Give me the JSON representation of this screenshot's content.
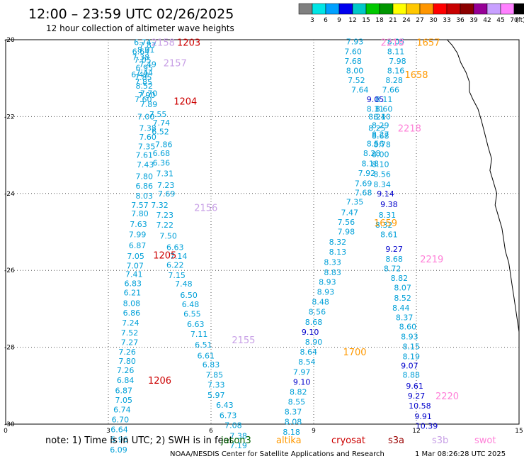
{
  "header": {
    "title": "12:00 – 23:59 UTC 02/26/2025",
    "subtitle": "12 hour collection of altimeter wave heights"
  },
  "colorbar": {
    "unit": "(ft)",
    "labels": [
      "3",
      "6",
      "9",
      "12",
      "15",
      "18",
      "21",
      "24",
      "27",
      "30",
      "33",
      "36",
      "39",
      "42",
      "45",
      "70"
    ],
    "colors": [
      "#808080",
      "#00e5e5",
      "#00a0ff",
      "#0000ee",
      "#00c8c8",
      "#00c800",
      "#009600",
      "#ffff00",
      "#ffc800",
      "#ff9600",
      "#ff0000",
      "#c80000",
      "#8b0000",
      "#960096",
      "#c8a0ff",
      "#ff80ff",
      "#000000"
    ]
  },
  "footer": {
    "note": "note:  1) Time is in UTC;  2) SWH is in feet",
    "credit": "NOAA/NESDIS Center for Satellite Applications and Research",
    "timestamp": "1 Mar 08:26:28 UTC 2025",
    "missions": [
      {
        "name": "jason3",
        "color": "#006400"
      },
      {
        "name": "altika",
        "color": "#ff9900"
      },
      {
        "name": "cryosat",
        "color": "#cc0000"
      },
      {
        "name": "s3a",
        "color": "#990000"
      },
      {
        "name": "s3b",
        "color": "#c8a0e6"
      },
      {
        "name": "swot",
        "color": "#ff80d8"
      }
    ]
  },
  "chart_data": {
    "type": "scatter",
    "xlim": [
      0,
      15
    ],
    "ylim": [
      -30,
      -20
    ],
    "x_ticks": [
      "0",
      "3",
      "6",
      "9",
      "12",
      "15"
    ],
    "y_ticks": [
      "-20",
      "-22",
      "-24",
      "-26",
      "-28",
      "-30"
    ],
    "grid": true,
    "legend": "colorbar-top-right",
    "tracks": [
      {
        "color": "#00a0d8",
        "points": [
          [
            4.0,
            -20.06,
            "6.74"
          ],
          [
            4.15,
            -20.14,
            "7.87"
          ],
          [
            4.1,
            -20.26,
            "8.01"
          ],
          [
            3.95,
            -20.3,
            "6.64"
          ],
          [
            3.95,
            -20.45,
            "7.38"
          ],
          [
            4.0,
            -20.53,
            "7.05"
          ],
          [
            4.15,
            -20.64,
            "7.49"
          ],
          [
            4.05,
            -20.73,
            "6.95"
          ],
          [
            3.92,
            -20.9,
            "6.42"
          ],
          [
            4.05,
            -20.86,
            "7.44"
          ],
          [
            4.02,
            -20.98,
            "7.85"
          ],
          [
            4.03,
            -21.1,
            "7.85"
          ],
          [
            4.05,
            -21.2,
            "8.52"
          ],
          [
            4.18,
            -21.39,
            "7.70"
          ],
          [
            4.02,
            -21.55,
            "7.60"
          ],
          [
            4.12,
            -21.44,
            "7.90"
          ],
          [
            4.18,
            -21.68,
            "7.89"
          ],
          [
            4.45,
            -21.94,
            "7.55"
          ],
          [
            4.1,
            -22.0,
            "7.00"
          ],
          [
            4.55,
            -22.16,
            "7.74"
          ],
          [
            4.15,
            -22.3,
            "7.38"
          ],
          [
            4.52,
            -22.39,
            "6.52"
          ],
          [
            4.15,
            -22.53,
            "7.60"
          ],
          [
            4.62,
            -22.72,
            "7.86"
          ],
          [
            4.12,
            -22.78,
            "7.35"
          ],
          [
            4.55,
            -22.95,
            "6.68"
          ],
          [
            4.05,
            -23.0,
            "7.61"
          ],
          [
            4.55,
            -23.2,
            "6.36"
          ],
          [
            4.08,
            -23.25,
            "7.43"
          ],
          [
            4.65,
            -23.48,
            "7.31"
          ],
          [
            4.05,
            -23.55,
            "7.80"
          ],
          [
            4.68,
            -23.78,
            "7.23"
          ],
          [
            4.05,
            -23.8,
            "6.86"
          ],
          [
            4.7,
            -24.0,
            "7.69"
          ],
          [
            4.05,
            -24.06,
            "8.03"
          ],
          [
            4.5,
            -24.3,
            "7.32"
          ],
          [
            3.92,
            -24.3,
            "7.57"
          ],
          [
            3.92,
            -24.52,
            "7.80"
          ],
          [
            4.65,
            -24.56,
            "7.23"
          ],
          [
            3.88,
            -24.8,
            "7.63"
          ],
          [
            4.65,
            -24.82,
            "7.22"
          ],
          [
            3.85,
            -25.06,
            "7.99"
          ],
          [
            4.75,
            -25.1,
            "7.50"
          ],
          [
            3.85,
            -25.35,
            "6.87"
          ],
          [
            4.95,
            -25.4,
            "6.63"
          ],
          [
            3.8,
            -25.63,
            "7.05"
          ],
          [
            5.05,
            -25.63,
            "7.14"
          ],
          [
            3.78,
            -25.88,
            "7.07"
          ],
          [
            4.95,
            -25.86,
            "6.22"
          ],
          [
            3.75,
            -26.1,
            "7.41"
          ],
          [
            5.0,
            -26.13,
            "7.15"
          ],
          [
            3.72,
            -26.34,
            "6.83"
          ],
          [
            5.2,
            -26.35,
            "7.48"
          ],
          [
            3.7,
            -26.58,
            "6.21"
          ],
          [
            5.35,
            -26.64,
            "6.50"
          ],
          [
            3.68,
            -26.85,
            "8.08"
          ],
          [
            5.4,
            -26.88,
            "6.48"
          ],
          [
            3.68,
            -27.1,
            "6.86"
          ],
          [
            5.45,
            -27.13,
            "6.55"
          ],
          [
            3.65,
            -27.36,
            "7.24"
          ],
          [
            5.55,
            -27.4,
            "6.63"
          ],
          [
            3.62,
            -27.62,
            "7.52"
          ],
          [
            5.65,
            -27.66,
            "7.11"
          ],
          [
            3.62,
            -27.87,
            "7.27"
          ],
          [
            5.78,
            -27.93,
            "6.51"
          ],
          [
            3.55,
            -28.12,
            "7.26"
          ],
          [
            5.85,
            -28.22,
            "6.61"
          ],
          [
            3.55,
            -28.36,
            "7.80"
          ],
          [
            6.0,
            -28.45,
            "6.83"
          ],
          [
            3.5,
            -28.6,
            "7.26"
          ],
          [
            6.1,
            -28.72,
            "7.85"
          ],
          [
            3.5,
            -28.86,
            "6.84"
          ],
          [
            6.15,
            -28.98,
            "7.33"
          ],
          [
            3.45,
            -29.12,
            "6.87"
          ],
          [
            6.15,
            -29.24,
            "5.97"
          ],
          [
            3.45,
            -29.37,
            "7.05"
          ],
          [
            6.4,
            -29.5,
            "6.43"
          ],
          [
            3.4,
            -29.62,
            "6.74"
          ],
          [
            6.5,
            -29.77,
            "6.73"
          ],
          [
            3.35,
            -29.88,
            "6.70"
          ],
          [
            6.65,
            -30.03,
            "7.08"
          ],
          [
            3.32,
            -30.14,
            "6.64"
          ],
          [
            6.8,
            -30.3,
            "7.38"
          ],
          [
            3.32,
            -30.4,
            "5.96"
          ],
          [
            6.8,
            -30.55,
            "7.19"
          ],
          [
            3.3,
            -30.66,
            "6.09"
          ]
        ]
      },
      {
        "color": "#00a0d8",
        "points": [
          [
            10.2,
            -20.05,
            "7.93"
          ],
          [
            11.4,
            -20.05,
            "8.05"
          ],
          [
            10.15,
            -20.3,
            "7.60"
          ],
          [
            11.4,
            -20.3,
            "8.11"
          ],
          [
            10.15,
            -20.55,
            "7.68"
          ],
          [
            11.45,
            -20.55,
            "7.98"
          ],
          [
            10.2,
            -20.8,
            "8.00"
          ],
          [
            11.4,
            -20.8,
            "8.16"
          ],
          [
            10.25,
            -21.05,
            "7.52"
          ],
          [
            11.35,
            -21.05,
            "8.28"
          ],
          [
            10.35,
            -21.3,
            "7.64"
          ],
          [
            11.25,
            -21.3,
            "7.66"
          ],
          [
            11.05,
            -21.55,
            "8.11"
          ],
          [
            10.8,
            -21.8,
            "8.31"
          ],
          [
            11.05,
            -21.8,
            "8.60"
          ],
          [
            10.85,
            -22.0,
            "8.24"
          ],
          [
            11.0,
            -22.0,
            "8.10"
          ],
          [
            10.95,
            -22.22,
            "8.29"
          ],
          [
            10.85,
            -22.3,
            "8.25"
          ],
          [
            10.95,
            -22.46,
            "8.27"
          ],
          [
            10.95,
            -22.5,
            "8.68"
          ],
          [
            10.8,
            -22.7,
            "8.56"
          ],
          [
            11.0,
            -22.72,
            "8.78"
          ],
          [
            10.7,
            -22.95,
            "8.28"
          ],
          [
            10.95,
            -22.98,
            "8.00"
          ],
          [
            10.65,
            -23.22,
            "8.18"
          ],
          [
            10.95,
            -23.24,
            "8.10"
          ],
          [
            10.55,
            -23.47,
            "7.92"
          ],
          [
            11.0,
            -23.5,
            "8.56"
          ],
          [
            10.45,
            -23.74,
            "7.69"
          ],
          [
            11.0,
            -23.76,
            "8.34"
          ],
          [
            10.45,
            -23.98,
            "7.68"
          ],
          [
            10.2,
            -24.22,
            "7.35"
          ],
          [
            10.05,
            -24.49,
            "7.47"
          ],
          [
            11.15,
            -24.56,
            "8.31"
          ],
          [
            9.95,
            -24.74,
            "7.56"
          ],
          [
            11.05,
            -24.82,
            "8.32"
          ],
          [
            9.95,
            -24.99,
            "7.98"
          ],
          [
            11.2,
            -25.06,
            "8.61"
          ],
          [
            9.7,
            -25.26,
            "8.32"
          ],
          [
            9.7,
            -25.52,
            "8.13"
          ],
          [
            11.35,
            -25.7,
            "8.68"
          ],
          [
            9.55,
            -25.78,
            "8.33"
          ],
          [
            11.3,
            -25.95,
            "8.72"
          ],
          [
            9.55,
            -26.05,
            "8.83"
          ],
          [
            11.5,
            -26.2,
            "8.82"
          ],
          [
            9.4,
            -26.3,
            "8.93"
          ],
          [
            11.6,
            -26.45,
            "8.07"
          ],
          [
            9.35,
            -26.56,
            "8.93"
          ],
          [
            11.6,
            -26.72,
            "8.52"
          ],
          [
            9.2,
            -26.82,
            "8.48"
          ],
          [
            11.55,
            -26.97,
            "8.44"
          ],
          [
            9.1,
            -27.08,
            "8.56"
          ],
          [
            11.65,
            -27.22,
            "8.37"
          ],
          [
            9.0,
            -27.34,
            "8.68"
          ],
          [
            11.75,
            -27.46,
            "8.60"
          ],
          [
            11.8,
            -27.72,
            "8.93"
          ],
          [
            9.0,
            -27.86,
            "8.90"
          ],
          [
            11.85,
            -27.98,
            "8.15"
          ],
          [
            8.85,
            -28.12,
            "8.64"
          ],
          [
            11.85,
            -28.24,
            "8.19"
          ],
          [
            8.8,
            -28.38,
            "8.54"
          ],
          [
            8.65,
            -28.64,
            "7.97"
          ],
          [
            11.85,
            -28.72,
            "8.88"
          ],
          [
            8.55,
            -29.16,
            "8.82"
          ],
          [
            8.5,
            -29.42,
            "8.55"
          ],
          [
            8.4,
            -29.68,
            "8.37"
          ],
          [
            8.4,
            -29.94,
            "8.08"
          ],
          [
            8.35,
            -30.2,
            "8.18"
          ]
        ]
      },
      {
        "color": "#0000cc",
        "points": [
          [
            10.8,
            -21.55,
            "9.05"
          ],
          [
            11.1,
            -24.0,
            "9.14"
          ],
          [
            11.2,
            -24.28,
            "9.38"
          ],
          [
            11.35,
            -25.44,
            "9.27"
          ],
          [
            8.9,
            -27.6,
            "9.10"
          ],
          [
            11.8,
            -28.48,
            "9.07"
          ],
          [
            8.65,
            -28.9,
            "9.10"
          ],
          [
            11.95,
            -29.0,
            "9.61"
          ],
          [
            12.0,
            -29.26,
            "9.27"
          ],
          [
            12.1,
            -29.52,
            "10.58"
          ],
          [
            12.2,
            -29.8,
            "9.91"
          ],
          [
            12.3,
            -30.05,
            "10.39"
          ]
        ]
      }
    ],
    "pass_labels": [
      {
        "x": 4.6,
        "y": -20.06,
        "text": "2158",
        "color": "#c8a0e6"
      },
      {
        "x": 5.35,
        "y": -20.06,
        "text": "1203",
        "color": "#cc0000"
      },
      {
        "x": 4.95,
        "y": -20.6,
        "text": "2157",
        "color": "#c8a0e6"
      },
      {
        "x": 5.25,
        "y": -21.6,
        "text": "1204",
        "color": "#cc0000"
      },
      {
        "x": 5.85,
        "y": -24.36,
        "text": "2156",
        "color": "#c8a0e6"
      },
      {
        "x": 4.65,
        "y": -25.6,
        "text": "1205",
        "color": "#cc0000"
      },
      {
        "x": 6.95,
        "y": -27.8,
        "text": "2155",
        "color": "#c8a0e6"
      },
      {
        "x": 4.5,
        "y": -28.86,
        "text": "1206",
        "color": "#cc0000"
      },
      {
        "x": 11.3,
        "y": -20.06,
        "text": "2218",
        "color": "#ff80d8"
      },
      {
        "x": 12.35,
        "y": -20.06,
        "text": "1657",
        "color": "#ff9900"
      },
      {
        "x": 12.0,
        "y": -20.9,
        "text": "1658",
        "color": "#ff9900"
      },
      {
        "x": 11.8,
        "y": -22.3,
        "text": "2218",
        "color": "#ff80d8"
      },
      {
        "x": 11.1,
        "y": -24.76,
        "text": "1659",
        "color": "#ff9900"
      },
      {
        "x": 12.45,
        "y": -25.7,
        "text": "2219",
        "color": "#ff80d8"
      },
      {
        "x": 10.2,
        "y": -28.12,
        "text": "1700",
        "color": "#ff9900"
      },
      {
        "x": 12.9,
        "y": -29.26,
        "text": "2220",
        "color": "#ff80d8"
      }
    ],
    "coastline": [
      [
        12.9,
        -20.0
      ],
      [
        13.05,
        -20.15
      ],
      [
        13.2,
        -20.35
      ],
      [
        13.3,
        -20.6
      ],
      [
        13.45,
        -20.85
      ],
      [
        13.55,
        -21.1
      ],
      [
        13.55,
        -21.35
      ],
      [
        13.65,
        -21.55
      ],
      [
        13.8,
        -21.8
      ],
      [
        13.9,
        -22.1
      ],
      [
        14.0,
        -22.45
      ],
      [
        14.1,
        -22.8
      ],
      [
        14.2,
        -23.1
      ],
      [
        14.15,
        -23.4
      ],
      [
        14.25,
        -23.7
      ],
      [
        14.35,
        -24.0
      ],
      [
        14.3,
        -24.3
      ],
      [
        14.4,
        -24.6
      ],
      [
        14.5,
        -24.9
      ],
      [
        14.55,
        -25.2
      ],
      [
        14.6,
        -25.5
      ],
      [
        14.7,
        -25.8
      ],
      [
        14.75,
        -26.1
      ],
      [
        14.8,
        -26.4
      ],
      [
        14.85,
        -26.7
      ],
      [
        14.9,
        -27.0
      ],
      [
        14.95,
        -27.3
      ],
      [
        15.0,
        -27.6
      ]
    ]
  }
}
